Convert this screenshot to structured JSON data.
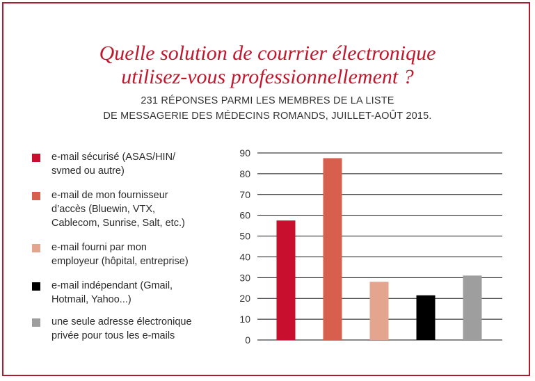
{
  "title_line1": "Quelle solution de courrier électronique",
  "title_line2": "utilisez-vous professionnellement ?",
  "subtitle_line1": "231 RÉPONSES PARMI LES MEMBRES DE LA LISTE",
  "subtitle_line2": "DE MESSAGERIE DES MÉDECINS ROMANDS, JUILLET-AOÛT 2015.",
  "legend": [
    {
      "lines": [
        "e-mail sécurisé (ASAS/HIN/",
        "svmed ou autre)"
      ],
      "color": "#c8102e"
    },
    {
      "lines": [
        "e-mail de mon fournisseur",
        "d’accès (Bluewin, VTX,",
        "Cablecom, Sunrise, Salt, etc.)"
      ],
      "color": "#d6604d"
    },
    {
      "lines": [
        "e-mail fourni par mon",
        "employeur (hôpital, entreprise)"
      ],
      "color": "#e4a58f"
    },
    {
      "lines": [
        "e-mail indépendant (Gmail,",
        "Hotmail, Yahoo...)"
      ],
      "color": "#000000"
    },
    {
      "lines": [
        "une seule adresse électronique",
        "privée pour tous les e-mails"
      ],
      "color": "#9e9e9e"
    }
  ],
  "chart_data": {
    "type": "bar",
    "series": [
      {
        "name": "e-mail sécurisé (ASAS/HIN/svmed ou autre)",
        "value": 57.5,
        "color": "#c8102e"
      },
      {
        "name": "e-mail de mon fournisseur d’accès (Bluewin, VTX, Cablecom, Sunrise, Salt, etc.)",
        "value": 87.5,
        "color": "#d6604d"
      },
      {
        "name": "e-mail fourni par mon employeur (hôpital, entreprise)",
        "value": 28,
        "color": "#e4a58f"
      },
      {
        "name": "e-mail indépendant (Gmail, Hotmail, Yahoo...)",
        "value": 21.5,
        "color": "#000000"
      },
      {
        "name": "une seule adresse électronique privée pour tous les e-mails",
        "value": 31,
        "color": "#9e9e9e"
      }
    ],
    "ylim": [
      0,
      90
    ],
    "yticks": [
      0,
      10,
      20,
      30,
      40,
      50,
      60,
      70,
      80,
      90
    ],
    "grid": true,
    "legend_position": "left"
  }
}
